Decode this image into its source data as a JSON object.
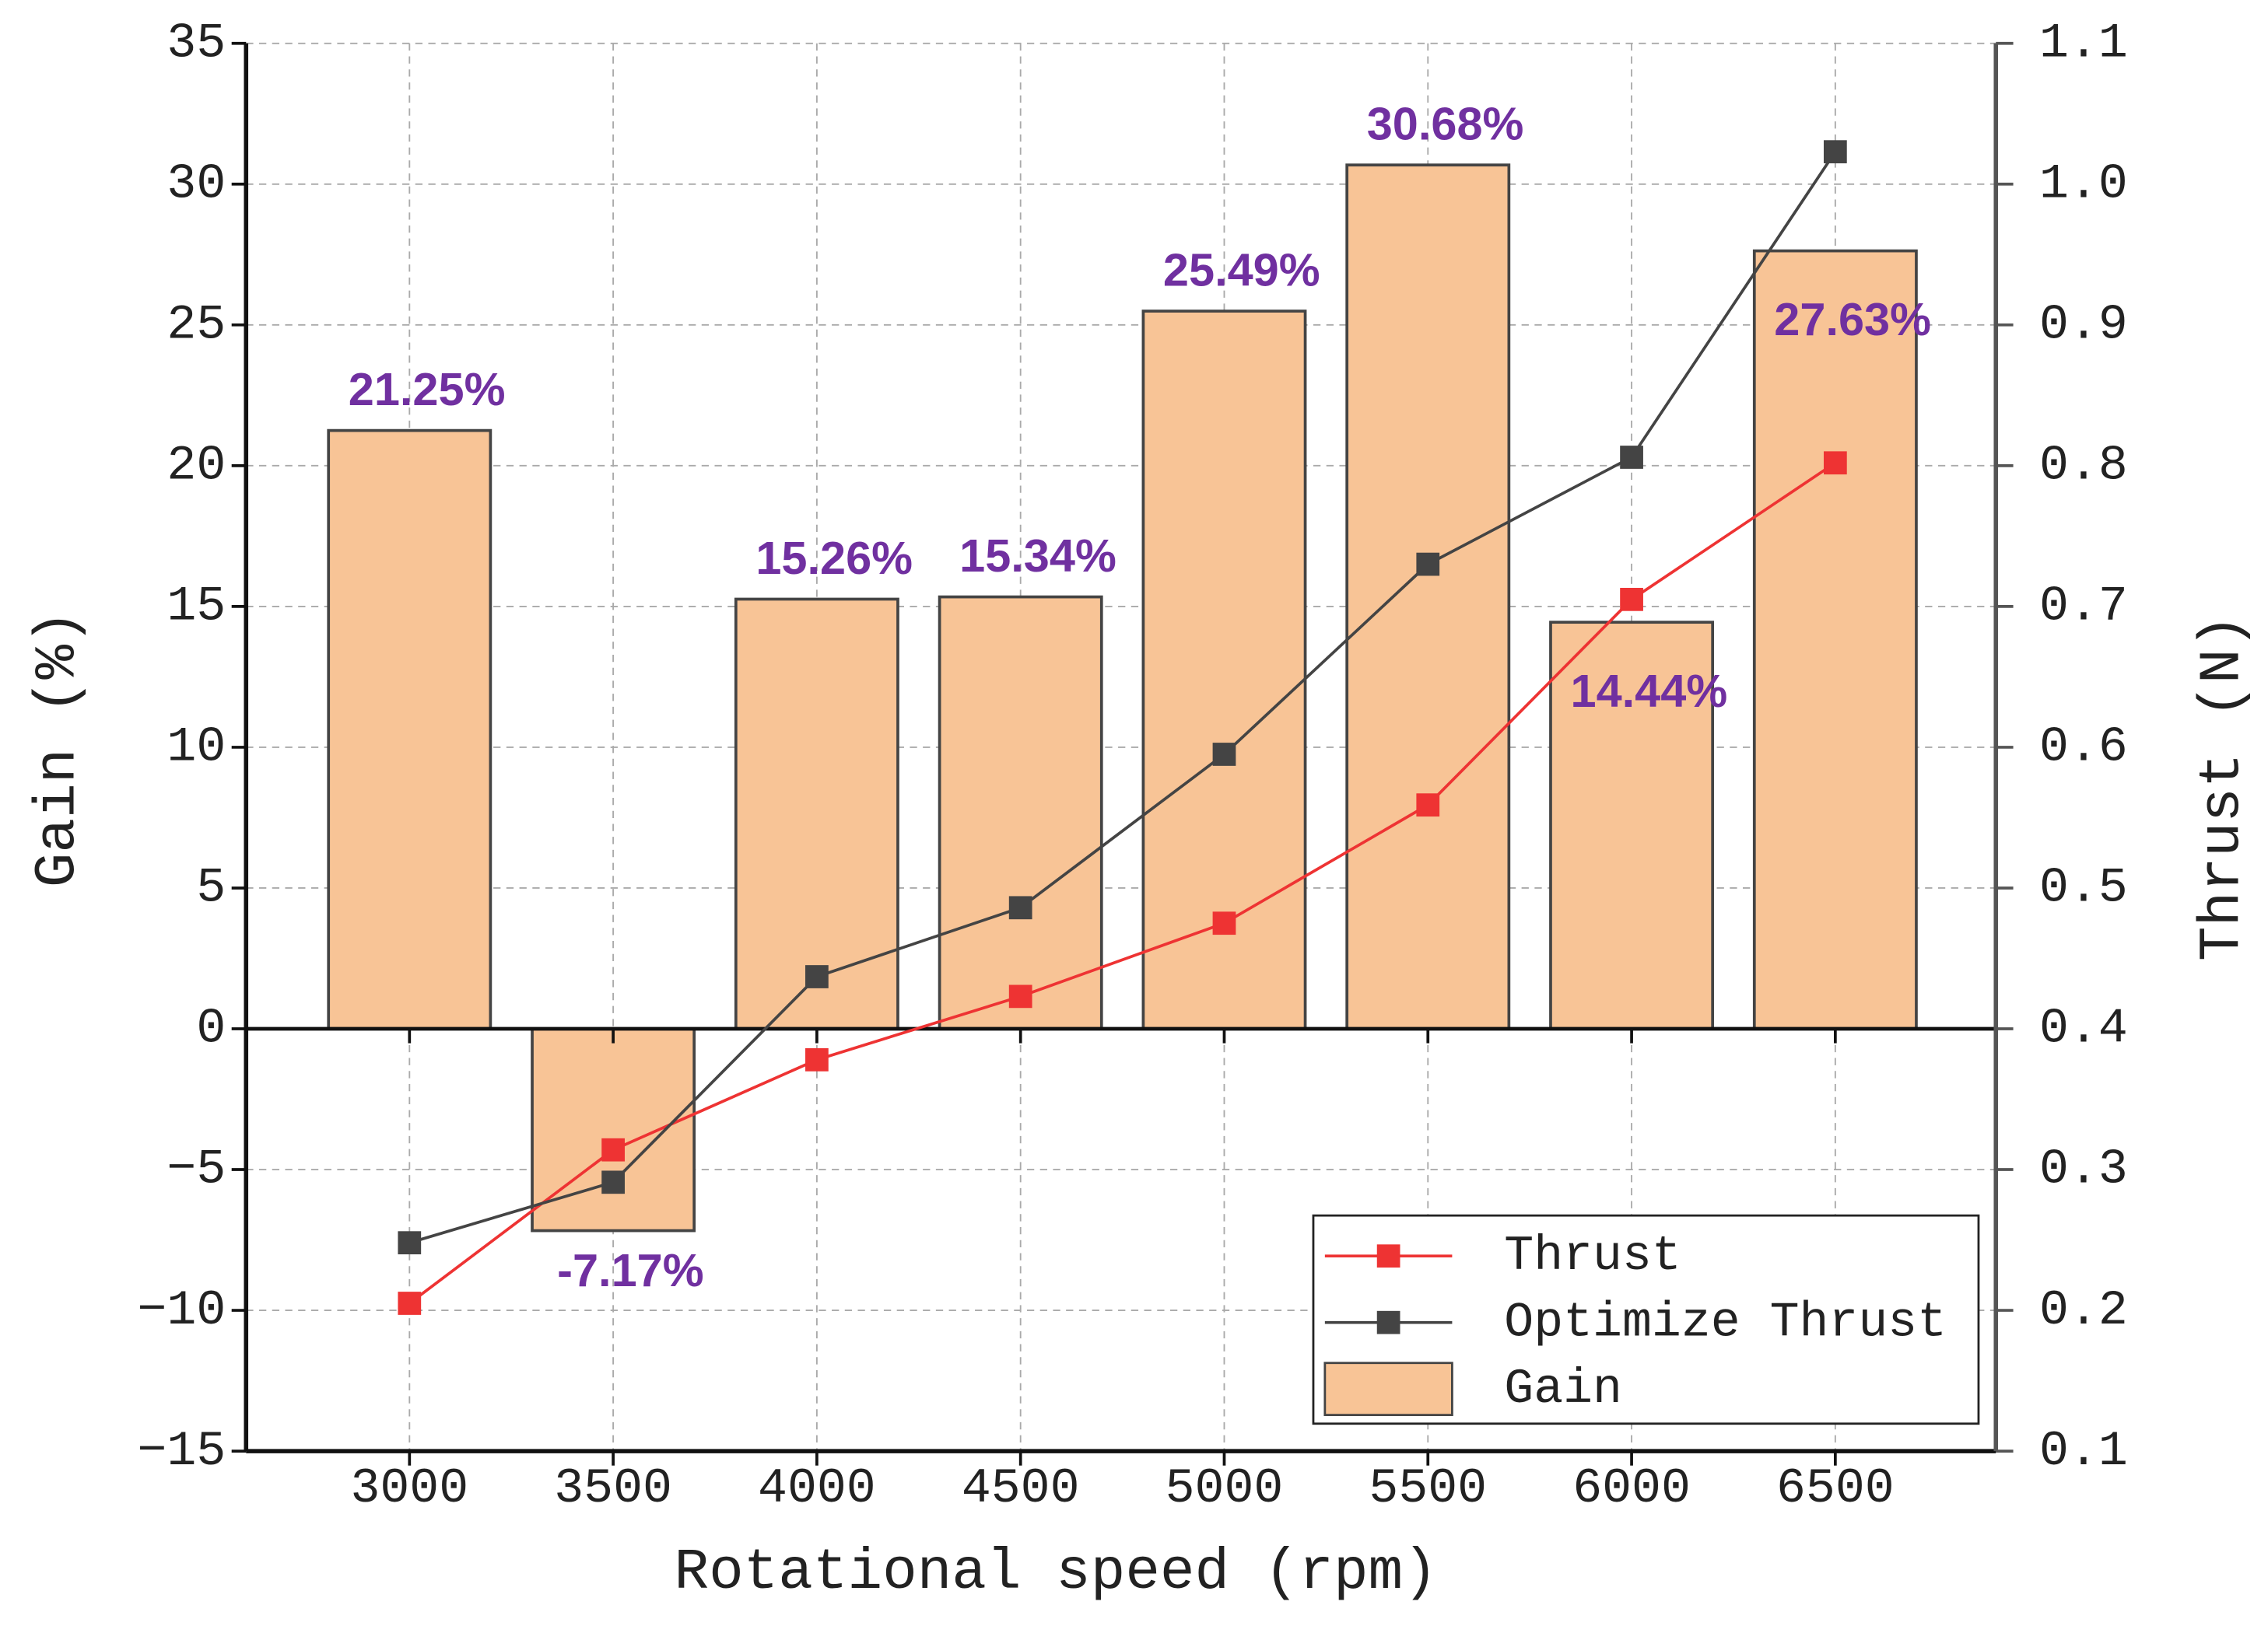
{
  "chart_data": {
    "type": "bar",
    "x_label": "Rotational speed (rpm)",
    "y_label": "Gain (%)",
    "y2_label": "Thrust (N)",
    "categories": [
      "3000",
      "3500",
      "4000",
      "4500",
      "5000",
      "5500",
      "6000",
      "6500"
    ],
    "series": [
      {
        "name": "Gain",
        "type": "bar",
        "color": "#f8c496",
        "values": [
          21.25,
          -7.17,
          15.26,
          15.34,
          25.49,
          30.68,
          14.44,
          27.63
        ],
        "value_labels": [
          "21.25%",
          "-7.17%",
          "15.26%",
          "15.34%",
          "25.49%",
          "30.68%",
          "14.44%",
          "27.63%"
        ]
      },
      {
        "name": "Thrust",
        "type": "line",
        "axis": "y2",
        "color": "#ee3333",
        "values": [
          0.205,
          0.314,
          0.378,
          0.423,
          0.475,
          0.559,
          0.705,
          0.802
        ]
      },
      {
        "name": "Optimize Thrust",
        "type": "line",
        "axis": "y2",
        "color": "#444444",
        "values": [
          0.248,
          0.291,
          0.437,
          0.486,
          0.595,
          0.73,
          0.806,
          1.023
        ]
      }
    ],
    "ylim": [
      -15,
      35
    ],
    "yticks": [
      {
        "value": -15,
        "label": "−15"
      },
      {
        "value": -10,
        "label": "−10"
      },
      {
        "value": -5,
        "label": "−5"
      },
      0,
      5,
      10,
      15,
      20,
      25,
      30,
      35
    ],
    "y2lim": [
      0.1,
      1.1
    ],
    "y2ticks": [
      0.1,
      0.2,
      0.3,
      0.4,
      0.5,
      0.6,
      0.7,
      0.8,
      0.9,
      {
        "value": 1,
        "label": "1.0"
      },
      1.1
    ],
    "grid": true,
    "legend": "lower right"
  }
}
